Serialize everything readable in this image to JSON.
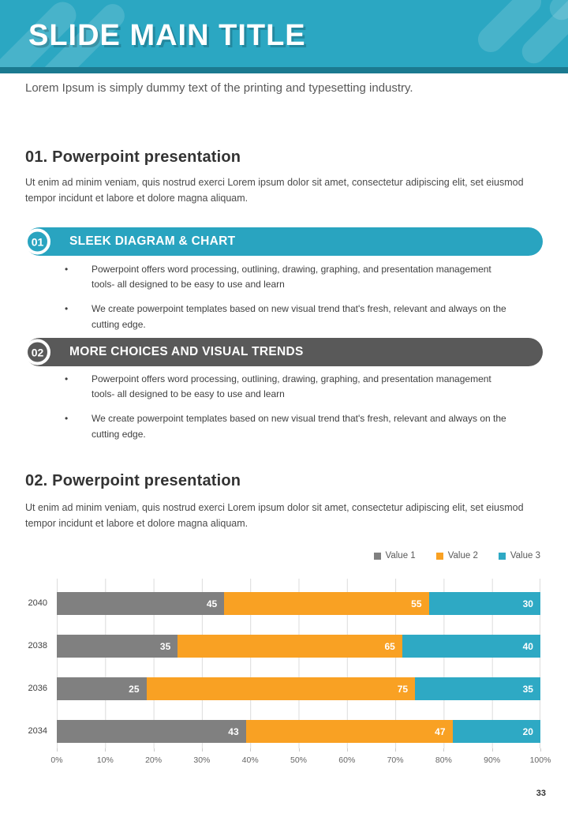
{
  "header": {
    "title": "SLIDE MAIN TITLE",
    "bg_color": "#2BA7C2",
    "strip_color": "#1B7A90",
    "stripe_color": "rgba(255,255,255,0.14)"
  },
  "intro": "Lorem Ipsum is simply dummy text of the printing and typesetting industry.",
  "sections": [
    {
      "heading": "01. Powerpoint presentation",
      "body": "Ut enim ad minim veniam, quis nostrud exerci  Lorem ipsum dolor sit amet, consectetur adipiscing elit, set eiusmod tempor incidunt et labore et dolore magna aliquam."
    },
    {
      "heading": "02. Powerpoint presentation",
      "body": "Ut enim ad minim veniam, quis nostrud exerci  Lorem ipsum dolor sit amet, consectetur adipiscing elit, set eiusmod tempor incidunt et labore et dolore magna aliquam."
    }
  ],
  "banners": [
    {
      "number": "01",
      "title": "SLEEK DIAGRAM & CHART",
      "color": "#29A4C0",
      "bullets": [
        "Powerpoint offers word processing, outlining, drawing, graphing, and presentation management tools- all designed to be easy to use and learn",
        "We create powerpoint templates based on new visual trend that's fresh, relevant and always on the cutting edge."
      ]
    },
    {
      "number": "02",
      "title": "MORE CHOICES AND VISUAL TRENDS",
      "color": "#595959",
      "bullets": [
        "Powerpoint offers word processing, outlining, drawing, graphing, and presentation management tools- all designed to be easy to use and learn",
        "We create powerpoint templates based on new visual trend that's fresh, relevant and always on the cutting edge."
      ]
    }
  ],
  "chart_data": {
    "type": "bar",
    "subtype": "horizontal-stacked-100percent",
    "categories": [
      "2040",
      "2038",
      "2036",
      "2034"
    ],
    "series": [
      {
        "name": "Value 1",
        "color": "#808080",
        "values": [
          45,
          35,
          25,
          43
        ]
      },
      {
        "name": "Value 2",
        "color": "#F9A123",
        "values": [
          55,
          65,
          75,
          47
        ]
      },
      {
        "name": "Value 3",
        "color": "#2EA9C4",
        "values": [
          30,
          40,
          35,
          20
        ]
      }
    ],
    "x_ticks": [
      "0%",
      "10%",
      "20%",
      "30%",
      "40%",
      "50%",
      "60%",
      "70%",
      "80%",
      "90%",
      "100%"
    ],
    "xlim": [
      0,
      100
    ],
    "grid": true,
    "legend_position": "top-right",
    "data_labels": true
  },
  "page_number": "33"
}
